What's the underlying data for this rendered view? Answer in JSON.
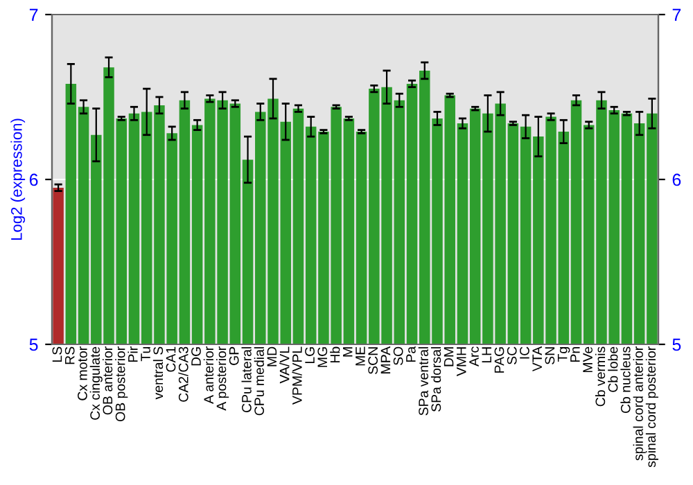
{
  "chart_data": {
    "type": "bar",
    "ylabel": "Log2 (expression)",
    "categories": [
      "LS",
      "RS",
      "Cx motor",
      "Cx cingulate",
      "OB anterior",
      "OB posterior",
      "Pir",
      "Tu",
      "ventral S",
      "CA1",
      "CA2/CA3",
      "DG",
      "A anterior",
      "A posterior",
      "GP",
      "CPu lateral",
      "CPu medial",
      "MD",
      "VA/VL",
      "VPM/VPL",
      "LG",
      "MG",
      "Hb",
      "M",
      "ME",
      "SCN",
      "MPA",
      "SO",
      "Pa",
      "SPa ventral",
      "SPa dorsal",
      "DM",
      "VMH",
      "Arc",
      "LH",
      "PAG",
      "SC",
      "IC",
      "VTA",
      "SN",
      "Tg",
      "Pn",
      "MVe",
      "Cb vermis",
      "Cb lobe",
      "Cb nucleus",
      "spinal cord anterior",
      "spinal cord posterior"
    ],
    "values": [
      5.95,
      6.58,
      6.44,
      6.27,
      6.68,
      6.37,
      6.4,
      6.41,
      6.45,
      6.28,
      6.48,
      6.33,
      6.49,
      6.48,
      6.46,
      6.12,
      6.41,
      6.49,
      6.35,
      6.43,
      6.32,
      6.29,
      6.44,
      6.37,
      6.29,
      6.55,
      6.56,
      6.48,
      6.58,
      6.66,
      6.37,
      6.51,
      6.34,
      6.43,
      6.4,
      6.46,
      6.34,
      6.32,
      6.26,
      6.38,
      6.29,
      6.48,
      6.33,
      6.48,
      6.42,
      6.4,
      6.34,
      6.4
    ],
    "errors": [
      0.02,
      0.12,
      0.04,
      0.16,
      0.06,
      0.01,
      0.04,
      0.14,
      0.05,
      0.04,
      0.05,
      0.03,
      0.02,
      0.05,
      0.02,
      0.14,
      0.05,
      0.12,
      0.11,
      0.02,
      0.06,
      0.01,
      0.01,
      0.01,
      0.01,
      0.02,
      0.1,
      0.04,
      0.02,
      0.05,
      0.04,
      0.01,
      0.03,
      0.01,
      0.11,
      0.07,
      0.01,
      0.07,
      0.12,
      0.02,
      0.07,
      0.03,
      0.02,
      0.05,
      0.02,
      0.01,
      0.07,
      0.09
    ],
    "colors": [
      "#b02a2a",
      "#2e9e2e",
      "#2e9e2e",
      "#2e9e2e",
      "#2e9e2e",
      "#2e9e2e",
      "#2e9e2e",
      "#2e9e2e",
      "#2e9e2e",
      "#2e9e2e",
      "#2e9e2e",
      "#2e9e2e",
      "#2e9e2e",
      "#2e9e2e",
      "#2e9e2e",
      "#2e9e2e",
      "#2e9e2e",
      "#2e9e2e",
      "#2e9e2e",
      "#2e9e2e",
      "#2e9e2e",
      "#2e9e2e",
      "#2e9e2e",
      "#2e9e2e",
      "#2e9e2e",
      "#2e9e2e",
      "#2e9e2e",
      "#2e9e2e",
      "#2e9e2e",
      "#2e9e2e",
      "#2e9e2e",
      "#2e9e2e",
      "#2e9e2e",
      "#2e9e2e",
      "#2e9e2e",
      "#2e9e2e",
      "#2e9e2e",
      "#2e9e2e",
      "#2e9e2e",
      "#2e9e2e",
      "#2e9e2e",
      "#2e9e2e",
      "#2e9e2e",
      "#2e9e2e",
      "#2e9e2e",
      "#2e9e2e",
      "#2e9e2e",
      "#2e9e2e"
    ],
    "ylim": [
      5,
      7
    ],
    "yticks": [
      5,
      6,
      7
    ],
    "y2lim": [
      5,
      7
    ],
    "y2ticks": [
      5,
      6,
      7
    ],
    "grid": "y"
  }
}
